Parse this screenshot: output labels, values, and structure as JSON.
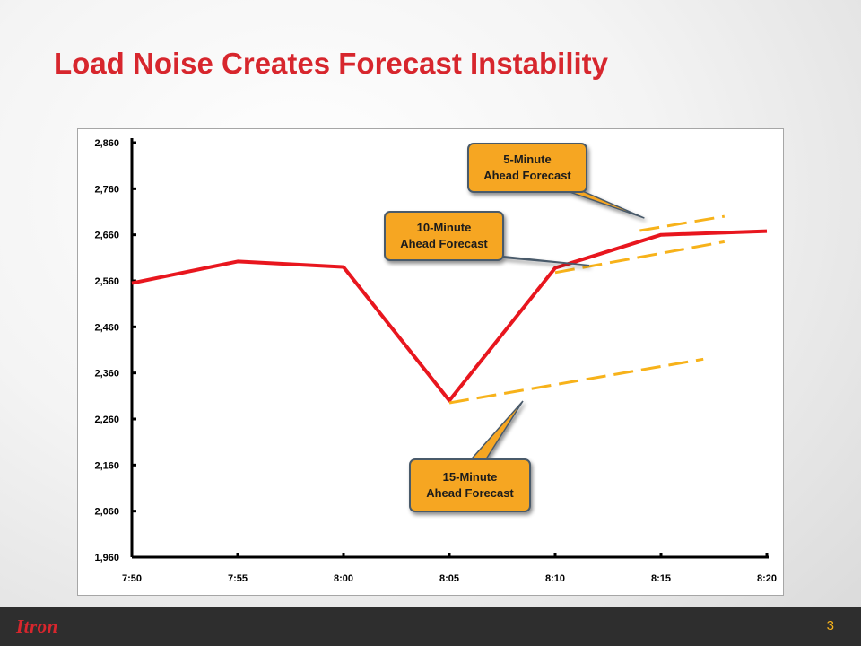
{
  "slide": {
    "title": "Load Noise Creates Forecast Instability",
    "page_number": "3",
    "logo_text": "Itron"
  },
  "colors": {
    "title": "#d7262d",
    "actual_line": "#e8161e",
    "forecast_line": "#f7b21a",
    "callout_fill": "#f6a623",
    "footer_bg": "#2e2e2e"
  },
  "chart_data": {
    "type": "line",
    "title": "",
    "xlabel": "",
    "ylabel": "",
    "x": [
      "7:50",
      "7:55",
      "8:00",
      "8:05",
      "8:10",
      "8:15",
      "8:20"
    ],
    "ylim": [
      1960,
      2860
    ],
    "yticks": [
      1960,
      2060,
      2160,
      2260,
      2360,
      2460,
      2560,
      2660,
      2760,
      2860
    ],
    "ytick_labels": [
      "1,960",
      "2,060",
      "2,160",
      "2,260",
      "2,360",
      "2,460",
      "2,560",
      "2,660",
      "2,760",
      "2,860"
    ],
    "grid": false,
    "series": [
      {
        "role": "actual",
        "style": "solid",
        "points": [
          {
            "x": "7:50",
            "y": 2555
          },
          {
            "x": "7:55",
            "y": 2602
          },
          {
            "x": "8:00",
            "y": 2590
          },
          {
            "x": "8:05",
            "y": 2300
          },
          {
            "x": "8:10",
            "y": 2588
          },
          {
            "x": "8:15",
            "y": 2660
          },
          {
            "x": "8:20",
            "y": 2668
          }
        ]
      },
      {
        "role": "forecast-15",
        "style": "dashed",
        "points": [
          {
            "x": "8:05",
            "y": 2295
          },
          {
            "x": "8:17",
            "y": 2390
          }
        ]
      },
      {
        "role": "forecast-10",
        "style": "dashed",
        "points": [
          {
            "x": "8:10",
            "y": 2578
          },
          {
            "x": "8:18",
            "y": 2645
          }
        ]
      },
      {
        "role": "forecast-5",
        "style": "dashed",
        "points": [
          {
            "x": "8:14",
            "y": 2669
          },
          {
            "x": "8:18",
            "y": 2700
          }
        ]
      }
    ],
    "annotations": [
      {
        "name": "callout-5-minute",
        "lines": [
          "5-Minute",
          "Ahead Forecast"
        ]
      },
      {
        "name": "callout-10-minute",
        "lines": [
          "10-Minute",
          "Ahead Forecast"
        ]
      },
      {
        "name": "callout-15-minute",
        "lines": [
          "15-Minute",
          "Ahead Forecast"
        ]
      }
    ]
  }
}
